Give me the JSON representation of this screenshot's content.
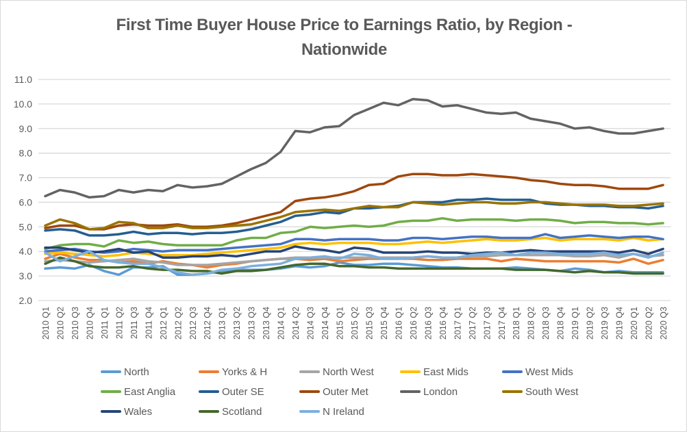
{
  "chart_data": {
    "type": "line",
    "title": "First Time Buyer House Price to Earnings Ratio, by Region - Nationwide",
    "title_lines": [
      "First Time Buyer House Price to Earnings Ratio, by Region -",
      "Nationwide"
    ],
    "xlabel": "",
    "ylabel": "",
    "ylim": [
      2.0,
      11.0
    ],
    "yticks": [
      "2.0",
      "3.0",
      "4.0",
      "5.0",
      "6.0",
      "7.0",
      "8.0",
      "9.0",
      "10.0",
      "11.0"
    ],
    "grid": true,
    "legend_position": "bottom",
    "x": [
      "2010 Q1",
      "2010 Q2",
      "2010 Q3",
      "2010 Q4",
      "2011 Q1",
      "2011 Q2",
      "2011 Q3",
      "2011 Q4",
      "2012 Q1",
      "2012 Q2",
      "2012 Q3",
      "2012 Q4",
      "2013 Q1",
      "2013 Q2",
      "2013 Q3",
      "2013 Q4",
      "2014 Q1",
      "2014 Q2",
      "2014 Q3",
      "2014 Q4",
      "2015 Q1",
      "2015 Q2",
      "2015 Q3",
      "2015 Q4",
      "2016 Q1",
      "2016 Q2",
      "2016 Q3",
      "2016 Q4",
      "2017 Q1",
      "2017 Q2",
      "2017 Q3",
      "2017 Q4",
      "2018 Q1",
      "2018 Q2",
      "2018 Q3",
      "2018 Q4",
      "2019 Q1",
      "2019 Q2",
      "2019 Q3",
      "2019 Q4",
      "2020 Q1",
      "2020 Q2",
      "2020 Q3"
    ],
    "series": [
      {
        "name": "North",
        "color": "#5b9bd5",
        "values": [
          3.3,
          3.35,
          3.3,
          3.45,
          3.2,
          3.05,
          3.35,
          3.35,
          3.4,
          3.05,
          3.05,
          3.1,
          3.2,
          3.25,
          3.25,
          3.25,
          3.3,
          3.4,
          3.35,
          3.4,
          3.55,
          3.45,
          3.45,
          3.5,
          3.5,
          3.45,
          3.4,
          3.35,
          3.35,
          3.3,
          3.3,
          3.3,
          3.35,
          3.3,
          3.25,
          3.2,
          3.3,
          3.25,
          3.15,
          3.2,
          3.15,
          3.15,
          3.15
        ]
      },
      {
        "name": "Yorks & H",
        "color": "#ed7d31",
        "values": [
          3.7,
          3.9,
          3.75,
          3.65,
          3.65,
          3.55,
          3.6,
          3.5,
          3.6,
          3.5,
          3.45,
          3.35,
          3.45,
          3.5,
          3.6,
          3.65,
          3.7,
          3.7,
          3.65,
          3.7,
          3.6,
          3.65,
          3.7,
          3.7,
          3.7,
          3.7,
          3.65,
          3.65,
          3.7,
          3.7,
          3.7,
          3.6,
          3.7,
          3.65,
          3.6,
          3.6,
          3.6,
          3.6,
          3.6,
          3.55,
          3.7,
          3.5,
          3.65
        ]
      },
      {
        "name": "North West",
        "color": "#a5a5a5",
        "values": [
          3.6,
          3.65,
          3.6,
          3.55,
          3.6,
          3.65,
          3.7,
          3.6,
          3.55,
          3.45,
          3.45,
          3.45,
          3.5,
          3.55,
          3.6,
          3.65,
          3.7,
          3.75,
          3.75,
          3.75,
          3.75,
          3.75,
          3.75,
          3.75,
          3.75,
          3.75,
          3.8,
          3.75,
          3.75,
          3.8,
          3.8,
          3.85,
          3.85,
          3.85,
          3.85,
          3.85,
          3.8,
          3.8,
          3.85,
          3.75,
          3.9,
          3.8,
          3.85
        ]
      },
      {
        "name": "East Mids",
        "color": "#ffc000",
        "values": [
          3.9,
          3.95,
          3.9,
          3.85,
          3.8,
          3.85,
          3.95,
          3.9,
          3.85,
          3.85,
          3.85,
          3.9,
          3.95,
          4.0,
          4.05,
          4.1,
          4.15,
          4.3,
          4.35,
          4.3,
          4.35,
          4.35,
          4.35,
          4.3,
          4.3,
          4.35,
          4.4,
          4.35,
          4.4,
          4.45,
          4.5,
          4.45,
          4.45,
          4.5,
          4.55,
          4.45,
          4.5,
          4.5,
          4.5,
          4.45,
          4.55,
          4.45,
          4.5
        ]
      },
      {
        "name": "West Mids",
        "color": "#4472c4",
        "values": [
          4.0,
          4.05,
          4.1,
          4.0,
          3.95,
          4.0,
          4.1,
          4.05,
          4.0,
          4.05,
          4.05,
          4.05,
          4.1,
          4.15,
          4.2,
          4.25,
          4.3,
          4.5,
          4.5,
          4.45,
          4.5,
          4.5,
          4.5,
          4.45,
          4.45,
          4.55,
          4.55,
          4.5,
          4.55,
          4.6,
          4.6,
          4.55,
          4.55,
          4.55,
          4.7,
          4.55,
          4.6,
          4.65,
          4.6,
          4.55,
          4.6,
          4.6,
          4.5
        ]
      },
      {
        "name": "East Anglia",
        "color": "#70ad47",
        "values": [
          4.1,
          4.25,
          4.3,
          4.3,
          4.2,
          4.45,
          4.35,
          4.4,
          4.3,
          4.25,
          4.25,
          4.25,
          4.25,
          4.45,
          4.55,
          4.55,
          4.75,
          4.8,
          5.0,
          4.95,
          5.0,
          5.05,
          5.0,
          5.05,
          5.2,
          5.25,
          5.25,
          5.35,
          5.25,
          5.3,
          5.3,
          5.3,
          5.25,
          5.3,
          5.3,
          5.25,
          5.15,
          5.2,
          5.2,
          5.15,
          5.15,
          5.1,
          5.15
        ]
      },
      {
        "name": "Outer SE",
        "color": "#255e91",
        "values": [
          4.85,
          4.9,
          4.85,
          4.65,
          4.65,
          4.7,
          4.8,
          4.7,
          4.75,
          4.75,
          4.7,
          4.75,
          4.75,
          4.8,
          4.9,
          5.05,
          5.2,
          5.45,
          5.5,
          5.6,
          5.55,
          5.75,
          5.75,
          5.8,
          5.85,
          6.0,
          6.0,
          6.0,
          6.1,
          6.1,
          6.15,
          6.1,
          6.1,
          6.1,
          5.95,
          5.9,
          5.9,
          5.85,
          5.85,
          5.8,
          5.8,
          5.75,
          5.85
        ]
      },
      {
        "name": "Outer Met",
        "color": "#9e480e",
        "values": [
          4.95,
          5.05,
          5.05,
          4.9,
          4.9,
          5.05,
          5.1,
          5.05,
          5.05,
          5.1,
          5.0,
          5.0,
          5.05,
          5.15,
          5.3,
          5.45,
          5.6,
          6.05,
          6.15,
          6.2,
          6.3,
          6.45,
          6.7,
          6.75,
          7.05,
          7.15,
          7.15,
          7.1,
          7.1,
          7.15,
          7.1,
          7.05,
          7.0,
          6.9,
          6.85,
          6.75,
          6.7,
          6.7,
          6.65,
          6.55,
          6.55,
          6.55,
          6.7
        ]
      },
      {
        "name": "London",
        "color": "#636363",
        "values": [
          6.25,
          6.5,
          6.4,
          6.2,
          6.25,
          6.5,
          6.4,
          6.5,
          6.45,
          6.7,
          6.6,
          6.65,
          6.75,
          7.05,
          7.35,
          7.6,
          8.05,
          8.9,
          8.85,
          9.05,
          9.1,
          9.55,
          9.8,
          10.05,
          9.95,
          10.2,
          10.15,
          9.9,
          9.95,
          9.8,
          9.65,
          9.6,
          9.65,
          9.4,
          9.3,
          9.2,
          9.0,
          9.05,
          8.9,
          8.8,
          8.8,
          8.9,
          9.0
        ]
      },
      {
        "name": "South West",
        "color": "#997300",
        "values": [
          5.05,
          5.3,
          5.15,
          4.9,
          4.95,
          5.2,
          5.15,
          4.95,
          4.95,
          5.05,
          4.95,
          4.95,
          5.0,
          5.05,
          5.1,
          5.25,
          5.4,
          5.6,
          5.65,
          5.7,
          5.65,
          5.75,
          5.85,
          5.8,
          5.8,
          6.0,
          5.95,
          5.9,
          5.95,
          6.0,
          6.0,
          5.95,
          5.95,
          6.0,
          6.0,
          5.95,
          5.9,
          5.9,
          5.9,
          5.85,
          5.85,
          5.9,
          5.95
        ]
      },
      {
        "name": "Wales",
        "color": "#264478",
        "values": [
          4.15,
          4.15,
          4.05,
          3.95,
          4.0,
          4.1,
          3.95,
          4.0,
          3.75,
          3.75,
          3.8,
          3.8,
          3.85,
          3.8,
          3.9,
          4.0,
          4.0,
          4.2,
          4.1,
          4.05,
          3.95,
          4.15,
          4.1,
          3.95,
          3.95,
          3.95,
          4.0,
          3.95,
          3.95,
          3.9,
          3.95,
          3.95,
          4.0,
          4.05,
          4.0,
          4.0,
          4.0,
          4.0,
          4.0,
          3.95,
          4.05,
          3.9,
          4.1
        ]
      },
      {
        "name": "Scotland",
        "color": "#43682b",
        "values": [
          3.5,
          3.75,
          3.6,
          3.4,
          3.35,
          3.35,
          3.4,
          3.3,
          3.25,
          3.25,
          3.2,
          3.2,
          3.1,
          3.2,
          3.2,
          3.25,
          3.35,
          3.45,
          3.5,
          3.5,
          3.4,
          3.4,
          3.35,
          3.35,
          3.3,
          3.3,
          3.3,
          3.3,
          3.3,
          3.3,
          3.3,
          3.3,
          3.25,
          3.25,
          3.25,
          3.2,
          3.15,
          3.2,
          3.15,
          3.15,
          3.1,
          3.1,
          3.1
        ]
      },
      {
        "name": "N Ireland",
        "color": "#7cafdd",
        "values": [
          3.95,
          3.6,
          3.8,
          4.0,
          3.65,
          3.55,
          3.5,
          3.5,
          3.35,
          3.15,
          3.05,
          3.1,
          3.25,
          3.3,
          3.4,
          3.45,
          3.5,
          3.7,
          3.75,
          3.8,
          3.7,
          3.9,
          3.85,
          3.7,
          3.7,
          3.75,
          3.8,
          3.75,
          3.75,
          3.85,
          3.9,
          3.95,
          3.85,
          3.95,
          3.95,
          3.9,
          3.9,
          3.9,
          3.95,
          3.85,
          3.9,
          3.75,
          3.95
        ]
      }
    ]
  }
}
